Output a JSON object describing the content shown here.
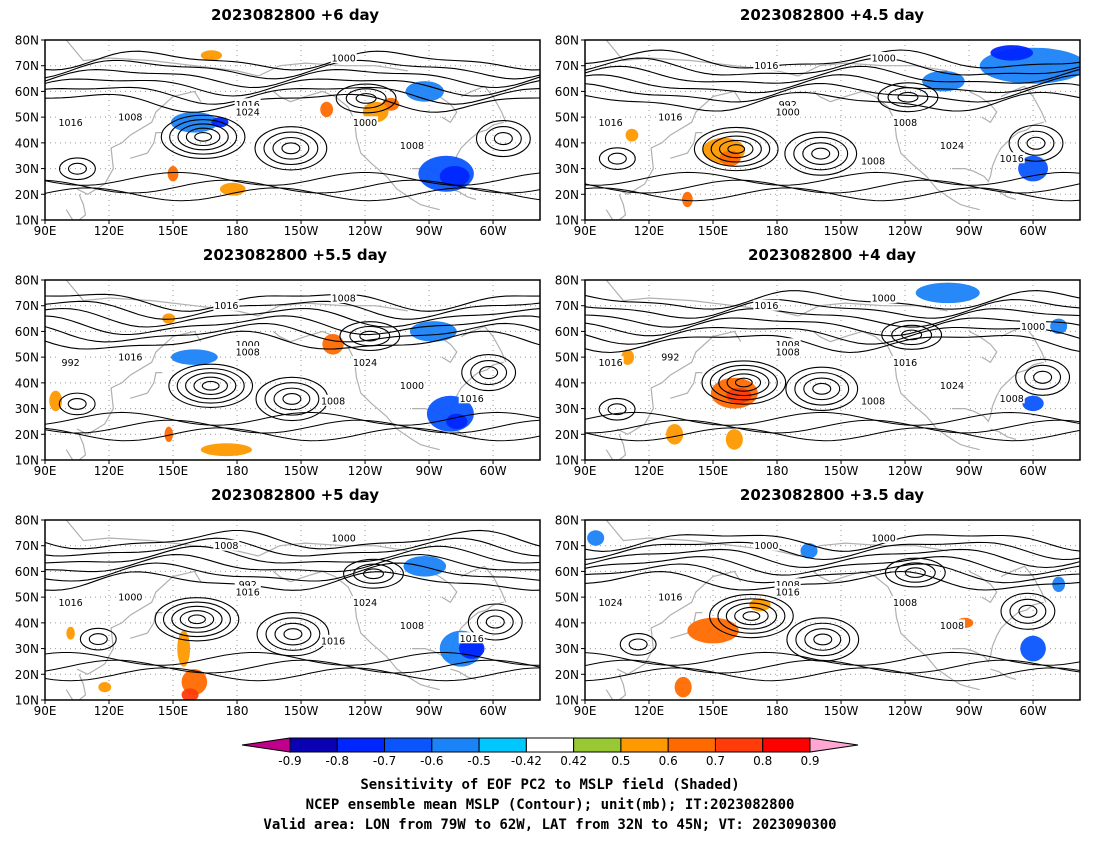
{
  "panels": [
    {
      "title": "2023082800  +6 day"
    },
    {
      "title": "2023082800  +4.5  day"
    },
    {
      "title": "2023082800  +5.5  day"
    },
    {
      "title": "2023082800  +4  day"
    },
    {
      "title": "2023082800  +5  day"
    },
    {
      "title": "2023082800  +3.5  day"
    }
  ],
  "footer": {
    "line1": "Sensitivity of EOF PC2 to MSLP field (Shaded)",
    "line2": "NCEP ensemble mean MSLP (Contour); unit(mb); IT:2023082800",
    "line3": "Valid area: LON from 79W to 62W, LAT from 32N to 45N; VT: 2023090300"
  },
  "chart_data": {
    "type": "heatmap",
    "x_ticks": [
      "90E",
      "120E",
      "150E",
      "180",
      "150W",
      "120W",
      "90W",
      "60W"
    ],
    "y_ticks": [
      "10N",
      "20N",
      "30N",
      "40N",
      "50N",
      "60N",
      "70N",
      "80N"
    ],
    "colorbar": {
      "labels": [
        "-0.9",
        "-0.8",
        "-0.7",
        "-0.6",
        "-0.5",
        "-0.42",
        "0.42",
        "0.5",
        "0.6",
        "0.7",
        "0.8",
        "0.9"
      ],
      "colors": [
        "#0a00b4",
        "#0026ff",
        "#0b55ff",
        "#1a83f7",
        "#00c8ff",
        "#ffffff",
        "#98c934",
        "#ff9900",
        "#ff6a00",
        "#ff3c0a",
        "#ff0000"
      ],
      "low_arrow_color": "#c0008a",
      "high_arrow_color": "#ffa6d2"
    },
    "panels": [
      {
        "contour_labels": [
          "1000",
          "1016",
          "1024",
          "1008",
          "1016",
          "1000",
          "1008"
        ],
        "blobs": [
          {
            "lon": 160,
            "lat": 48,
            "level": "-0.6",
            "w": 22,
            "h": 8
          },
          {
            "lon": 172,
            "lat": 48,
            "level": "-0.8",
            "w": 8,
            "h": 4
          },
          {
            "lon": 278,
            "lat": 28,
            "level": "-0.7",
            "w": 26,
            "h": 14
          },
          {
            "lon": 282,
            "lat": 27,
            "level": "-0.8",
            "w": 14,
            "h": 8
          },
          {
            "lon": 268,
            "lat": 60,
            "level": "-0.6",
            "w": 18,
            "h": 8
          },
          {
            "lon": 252,
            "lat": 55,
            "level": "0.6",
            "w": 8,
            "h": 5
          },
          {
            "lon": 245,
            "lat": 52,
            "level": "0.5",
            "w": 12,
            "h": 8
          },
          {
            "lon": 178,
            "lat": 22,
            "level": "0.5",
            "w": 12,
            "h": 5
          },
          {
            "lon": 150,
            "lat": 28,
            "level": "0.6",
            "w": 5,
            "h": 6
          },
          {
            "lon": 168,
            "lat": 74,
            "level": "0.5",
            "w": 10,
            "h": 4
          },
          {
            "lon": 222,
            "lat": 53,
            "level": "0.6",
            "w": 6,
            "h": 6
          }
        ]
      },
      {
        "contour_labels": [
          "1000",
          "992",
          "1000",
          "1016",
          "1016",
          "1008",
          "1024",
          "1016",
          "1008",
          "1016"
        ],
        "blobs": [
          {
            "lon": 300,
            "lat": 70,
            "level": "-0.6",
            "w": 50,
            "h": 14
          },
          {
            "lon": 290,
            "lat": 75,
            "level": "-0.8",
            "w": 20,
            "h": 6
          },
          {
            "lon": 258,
            "lat": 64,
            "level": "-0.6",
            "w": 20,
            "h": 8
          },
          {
            "lon": 300,
            "lat": 30,
            "level": "-0.7",
            "w": 14,
            "h": 10
          },
          {
            "lon": 155,
            "lat": 37,
            "level": "0.5",
            "w": 20,
            "h": 10
          },
          {
            "lon": 158,
            "lat": 34,
            "level": "0.6",
            "w": 10,
            "h": 6
          },
          {
            "lon": 112,
            "lat": 43,
            "level": "0.5",
            "w": 6,
            "h": 5
          },
          {
            "lon": 138,
            "lat": 18,
            "level": "0.6",
            "w": 5,
            "h": 6
          }
        ]
      },
      {
        "contour_labels": [
          "1008",
          "1000",
          "1008",
          "1016",
          "992",
          "1024",
          "1000",
          "1016",
          "1008",
          "1016"
        ],
        "blobs": [
          {
            "lon": 160,
            "lat": 50,
            "level": "-0.6",
            "w": 22,
            "h": 6
          },
          {
            "lon": 272,
            "lat": 60,
            "level": "-0.6",
            "w": 22,
            "h": 8
          },
          {
            "lon": 280,
            "lat": 28,
            "level": "-0.7",
            "w": 22,
            "h": 14
          },
          {
            "lon": 283,
            "lat": 25,
            "level": "-0.8",
            "w": 10,
            "h": 6
          },
          {
            "lon": 225,
            "lat": 55,
            "level": "0.6",
            "w": 10,
            "h": 8
          },
          {
            "lon": 175,
            "lat": 14,
            "level": "0.5",
            "w": 24,
            "h": 5
          },
          {
            "lon": 148,
            "lat": 65,
            "level": "0.5",
            "w": 6,
            "h": 4
          },
          {
            "lon": 148,
            "lat": 20,
            "level": "0.6",
            "w": 4,
            "h": 6
          },
          {
            "lon": 95,
            "lat": 33,
            "level": "0.5",
            "w": 6,
            "h": 8
          }
        ]
      },
      {
        "contour_labels": [
          "1000",
          "1008",
          "1008",
          "992",
          "1016",
          "1016",
          "1024",
          "1016",
          "1008",
          "1008",
          "1000"
        ],
        "blobs": [
          {
            "lon": 260,
            "lat": 75,
            "level": "-0.6",
            "w": 30,
            "h": 8
          },
          {
            "lon": 300,
            "lat": 32,
            "level": "-0.7",
            "w": 10,
            "h": 6
          },
          {
            "lon": 312,
            "lat": 62,
            "level": "-0.6",
            "w": 8,
            "h": 6
          },
          {
            "lon": 160,
            "lat": 36,
            "level": "0.6",
            "w": 22,
            "h": 12
          },
          {
            "lon": 162,
            "lat": 35,
            "level": "0.7",
            "w": 12,
            "h": 6
          },
          {
            "lon": 132,
            "lat": 20,
            "level": "0.5",
            "w": 8,
            "h": 8
          },
          {
            "lon": 110,
            "lat": 50,
            "level": "0.5",
            "w": 6,
            "h": 6
          },
          {
            "lon": 160,
            "lat": 18,
            "level": "0.5",
            "w": 8,
            "h": 8
          }
        ]
      },
      {
        "contour_labels": [
          "1000",
          "992",
          "1016",
          "1000",
          "1016",
          "1024",
          "1008",
          "1008",
          "1016",
          "1016"
        ],
        "blobs": [
          {
            "lon": 268,
            "lat": 62,
            "level": "-0.6",
            "w": 20,
            "h": 8
          },
          {
            "lon": 285,
            "lat": 30,
            "level": "-0.6",
            "w": 20,
            "h": 14
          },
          {
            "lon": 290,
            "lat": 30,
            "level": "-0.8",
            "w": 12,
            "h": 8
          },
          {
            "lon": 160,
            "lat": 17,
            "level": "0.6",
            "w": 12,
            "h": 10
          },
          {
            "lon": 158,
            "lat": 12,
            "level": "0.7",
            "w": 8,
            "h": 5
          },
          {
            "lon": 155,
            "lat": 30,
            "level": "0.5",
            "w": 6,
            "h": 14
          },
          {
            "lon": 118,
            "lat": 15,
            "level": "0.5",
            "w": 6,
            "h": 4
          },
          {
            "lon": 102,
            "lat": 36,
            "level": "0.5",
            "w": 4,
            "h": 5
          }
        ]
      },
      {
        "contour_labels": [
          "1000",
          "1008",
          "1016",
          "1016",
          "1024",
          "1008",
          "1008",
          "1000"
        ],
        "blobs": [
          {
            "lon": 95,
            "lat": 73,
            "level": "-0.6",
            "w": 8,
            "h": 6
          },
          {
            "lon": 195,
            "lat": 68,
            "level": "-0.6",
            "w": 8,
            "h": 6
          },
          {
            "lon": 300,
            "lat": 30,
            "level": "-0.7",
            "w": 12,
            "h": 10
          },
          {
            "lon": 312,
            "lat": 55,
            "level": "-0.6",
            "w": 6,
            "h": 6
          },
          {
            "lon": 150,
            "lat": 37,
            "level": "0.6",
            "w": 24,
            "h": 10
          },
          {
            "lon": 136,
            "lat": 15,
            "level": "0.6",
            "w": 8,
            "h": 8
          },
          {
            "lon": 172,
            "lat": 47,
            "level": "0.5",
            "w": 10,
            "h": 5
          },
          {
            "lon": 268,
            "lat": 40,
            "level": "0.6",
            "w": 8,
            "h": 4
          }
        ]
      }
    ]
  }
}
